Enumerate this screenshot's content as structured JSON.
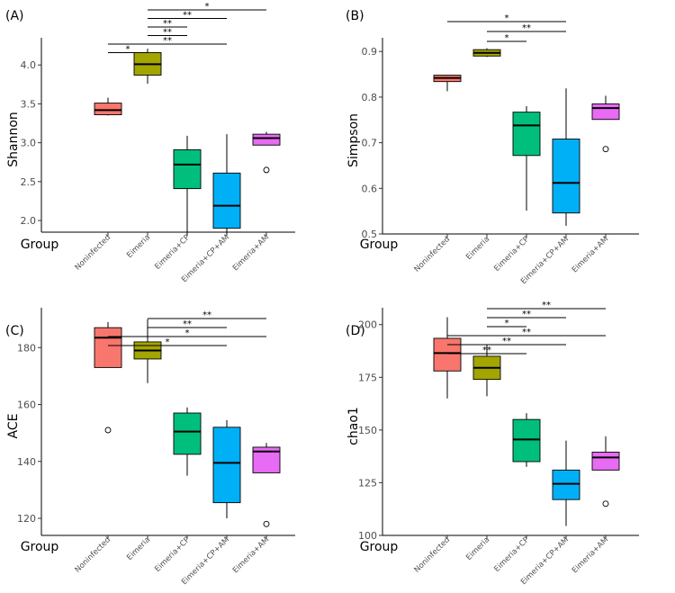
{
  "group_label": "Group",
  "chart_data": [
    {
      "type": "box",
      "panel_label": "(A)",
      "ylabel": "Shannon",
      "ylim": [
        1.85,
        4.35
      ],
      "yticks": [
        2.0,
        2.5,
        3.0,
        3.5,
        4.0
      ],
      "ytick_labels": [
        "2.0",
        "2.5",
        "3.0",
        "3.5",
        "4.0"
      ],
      "categories": [
        "Noninfected",
        "Eimeria",
        "Eimeria+CP",
        "Eimeria+CP+AM",
        "Eimeria+AM"
      ],
      "boxes": [
        {
          "whisker_low": 3.35,
          "q1": 3.36,
          "median": 3.42,
          "q3": 3.51,
          "whisker_high": 3.58,
          "outliers": []
        },
        {
          "whisker_low": 3.76,
          "q1": 3.87,
          "median": 4.01,
          "q3": 4.16,
          "whisker_high": 4.21,
          "outliers": []
        },
        {
          "whisker_low": 1.82,
          "q1": 2.41,
          "median": 2.72,
          "q3": 2.91,
          "whisker_high": 3.09,
          "outliers": []
        },
        {
          "whisker_low": 1.82,
          "q1": 1.9,
          "median": 2.19,
          "q3": 2.61,
          "whisker_high": 3.11,
          "outliers": []
        },
        {
          "whisker_low": 2.97,
          "q1": 2.97,
          "median": 3.06,
          "q3": 3.11,
          "whisker_high": 3.14,
          "outliers": [
            2.65
          ]
        }
      ],
      "significance": [
        {
          "from": 1,
          "to": 4,
          "label": "*"
        },
        {
          "from": 1,
          "to": 3,
          "label": "**"
        },
        {
          "from": 1,
          "to": 2,
          "label": "**"
        },
        {
          "from": 1,
          "to": 2,
          "label": "**"
        },
        {
          "from": 0,
          "to": 3,
          "label": "**"
        },
        {
          "from": 0,
          "to": 1,
          "label": "*"
        }
      ]
    },
    {
      "type": "box",
      "panel_label": "(B)",
      "ylabel": "Simpson",
      "ylim": [
        0.5,
        0.93
      ],
      "yticks": [
        0.5,
        0.6,
        0.7,
        0.8,
        0.9
      ],
      "ytick_labels": [
        "0.5",
        "0.6",
        "0.7",
        "0.8",
        "0.9"
      ],
      "categories": [
        "Noninfected",
        "Eimeria",
        "Eimeria+CP",
        "Eimeria+CP+AM",
        "Eimeria+AM"
      ],
      "boxes": [
        {
          "whisker_low": 0.813,
          "q1": 0.834,
          "median": 0.842,
          "q3": 0.848,
          "whisker_high": 0.849,
          "outliers": []
        },
        {
          "whisker_low": 0.888,
          "q1": 0.89,
          "median": 0.897,
          "q3": 0.904,
          "whisker_high": 0.907,
          "outliers": []
        },
        {
          "whisker_low": 0.551,
          "q1": 0.672,
          "median": 0.738,
          "q3": 0.767,
          "whisker_high": 0.78,
          "outliers": []
        },
        {
          "whisker_low": 0.518,
          "q1": 0.546,
          "median": 0.612,
          "q3": 0.708,
          "whisker_high": 0.819,
          "outliers": []
        },
        {
          "whisker_low": 0.751,
          "q1": 0.751,
          "median": 0.776,
          "q3": 0.785,
          "whisker_high": 0.803,
          "outliers": [
            0.686
          ]
        }
      ],
      "significance": [
        {
          "from": 0,
          "to": 3,
          "label": "*"
        },
        {
          "from": 1,
          "to": 3,
          "label": "**"
        },
        {
          "from": 1,
          "to": 2,
          "label": "*"
        }
      ]
    },
    {
      "type": "box",
      "panel_label": "(C)",
      "ylabel": "ACE",
      "ylim": [
        114,
        194
      ],
      "yticks": [
        120,
        140,
        160,
        180
      ],
      "ytick_labels": [
        "120",
        "140",
        "160",
        "180"
      ],
      "categories": [
        "Noninfected",
        "Eimeria",
        "Eimeria+CP",
        "Eimeria+CP+AM",
        "Eimeria+AM"
      ],
      "boxes": [
        {
          "whisker_low": 173,
          "q1": 173,
          "median": 183.5,
          "q3": 187,
          "whisker_high": 189,
          "outliers": [
            151
          ]
        },
        {
          "whisker_low": 167.5,
          "q1": 176,
          "median": 179,
          "q3": 182,
          "whisker_high": 190,
          "outliers": []
        },
        {
          "whisker_low": 135,
          "q1": 142.5,
          "median": 150.5,
          "q3": 157,
          "whisker_high": 159,
          "outliers": []
        },
        {
          "whisker_low": 120,
          "q1": 125.5,
          "median": 139.5,
          "q3": 152,
          "whisker_high": 154.5,
          "outliers": []
        },
        {
          "whisker_low": 136,
          "q1": 136,
          "median": 143.5,
          "q3": 145,
          "whisker_high": 146.5,
          "outliers": [
            118
          ]
        }
      ],
      "significance": [
        {
          "from": 1,
          "to": 4,
          "label": "**"
        },
        {
          "from": 1,
          "to": 3,
          "label": "**"
        },
        {
          "from": 0,
          "to": 4,
          "label": "*"
        },
        {
          "from": 0,
          "to": 3,
          "label": "*"
        }
      ]
    },
    {
      "type": "box",
      "panel_label": "(D)",
      "ylabel": "chao1",
      "ylim": [
        100,
        208
      ],
      "yticks": [
        100,
        125,
        150,
        175,
        200
      ],
      "ytick_labels": [
        "100",
        "125",
        "150",
        "175",
        "200"
      ],
      "categories": [
        "Noninfected",
        "Eimeria",
        "Eimeria+CP",
        "Eimeria+CP+AM",
        "Eimeria+AM"
      ],
      "boxes": [
        {
          "whisker_low": 165,
          "q1": 178,
          "median": 186.5,
          "q3": 193.5,
          "whisker_high": 203.5,
          "outliers": []
        },
        {
          "whisker_low": 166,
          "q1": 174,
          "median": 179.5,
          "q3": 185,
          "whisker_high": 190.5,
          "outliers": []
        },
        {
          "whisker_low": 132.5,
          "q1": 135,
          "median": 145.5,
          "q3": 155,
          "whisker_high": 158,
          "outliers": []
        },
        {
          "whisker_low": 104.5,
          "q1": 117,
          "median": 124.5,
          "q3": 131,
          "whisker_high": 145,
          "outliers": []
        },
        {
          "whisker_low": 131,
          "q1": 131,
          "median": 137,
          "q3": 139.5,
          "whisker_high": 147,
          "outliers": [
            115
          ]
        }
      ],
      "significance": [
        {
          "from": 1,
          "to": 4,
          "label": "**"
        },
        {
          "from": 1,
          "to": 3,
          "label": "**"
        },
        {
          "from": 1,
          "to": 2,
          "label": "*"
        },
        {
          "from": 0,
          "to": 4,
          "label": "**"
        },
        {
          "from": 0,
          "to": 3,
          "label": "**"
        },
        {
          "from": 0,
          "to": 2,
          "label": "**"
        }
      ]
    }
  ],
  "colors": {
    "fills": [
      "#f8766d",
      "#a3a500",
      "#00bf7d",
      "#00b0f6",
      "#e76bf3"
    ],
    "line": "#000000",
    "axis": "#000000"
  }
}
